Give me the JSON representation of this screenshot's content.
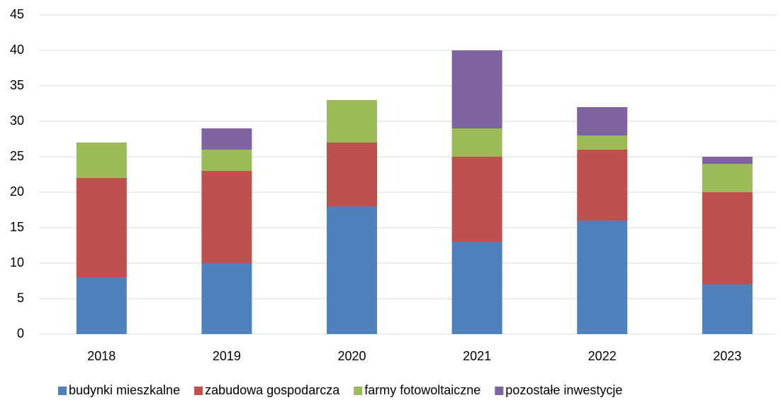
{
  "chart_data": {
    "type": "bar",
    "stacked": true,
    "categories": [
      "2018",
      "2019",
      "2020",
      "2021",
      "2022",
      "2023"
    ],
    "series": [
      {
        "name": "budynki mieszkalne",
        "color": "#4f81bd",
        "values": [
          8,
          10,
          18,
          13,
          16,
          7
        ]
      },
      {
        "name": "zabudowa gospodarcza",
        "color": "#c0504d",
        "values": [
          14,
          13,
          9,
          12,
          10,
          13
        ]
      },
      {
        "name": "farmy fotowoltaiczne",
        "color": "#9bbb59",
        "values": [
          5,
          3,
          6,
          4,
          2,
          4
        ]
      },
      {
        "name": "pozostałe inwestycje",
        "color": "#8064a2",
        "values": [
          0,
          3,
          0,
          11,
          4,
          1
        ]
      }
    ],
    "ylim": [
      0,
      45
    ],
    "yticks": [
      0,
      5,
      10,
      15,
      20,
      25,
      30,
      35,
      40,
      45
    ],
    "grid": true,
    "legend": "bottom"
  }
}
